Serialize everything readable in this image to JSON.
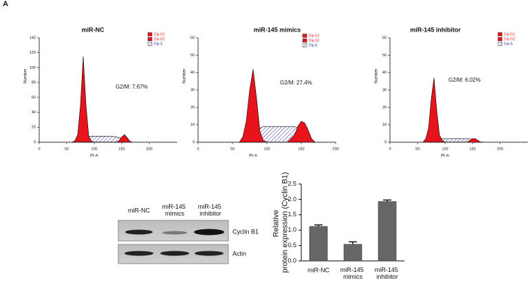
{
  "panel_label": "A",
  "chart_data": [
    {
      "type": "flow",
      "title": "miR-NC",
      "xlabel": "PI-A",
      "ylabel": "Number",
      "annotation": "G2/M: 7.67%",
      "x": [
        60,
        65,
        70,
        75,
        80,
        85,
        90,
        95,
        100,
        110,
        120,
        130,
        140,
        145,
        150,
        155,
        160,
        165,
        170
      ],
      "series": [
        {
          "name": "Dip G1",
          "color": "#e8141c",
          "fill": "solid",
          "values": [
            0,
            2,
            10,
            50,
            115,
            50,
            8,
            1,
            0,
            0,
            0,
            0,
            0,
            0,
            0,
            0,
            0,
            0,
            0
          ]
        },
        {
          "name": "Dip G2",
          "color": "#e8141c",
          "fill": "solid",
          "values": [
            0,
            0,
            0,
            0,
            0,
            0,
            0,
            0,
            0,
            0,
            0,
            0,
            0,
            2,
            7,
            10,
            6,
            1,
            0
          ]
        },
        {
          "name": "Dip S",
          "color": "#2a2a9a",
          "fill": "hatch",
          "values": [
            0,
            0,
            0,
            1,
            3,
            6,
            8,
            8,
            8,
            8,
            8,
            8,
            7,
            6,
            5,
            3,
            1,
            0,
            0
          ]
        }
      ],
      "xlim": [
        0,
        250
      ],
      "xticks": [
        0,
        50,
        100,
        150,
        200
      ],
      "ylim": [
        0,
        140
      ],
      "yticks": [
        0,
        20,
        40,
        60,
        80,
        100,
        120,
        140
      ]
    },
    {
      "type": "flow",
      "title": "miR-145 mimics",
      "xlabel": "PI-A",
      "ylabel": "Number",
      "annotation": "G2/M: 27.4%",
      "x": [
        60,
        65,
        70,
        75,
        80,
        85,
        90,
        95,
        100,
        110,
        120,
        130,
        140,
        145,
        150,
        155,
        160,
        165,
        170
      ],
      "series": [
        {
          "name": "Dip G1",
          "color": "#e8141c",
          "fill": "solid",
          "values": [
            0,
            3,
            12,
            30,
            42,
            25,
            6,
            1,
            0,
            0,
            0,
            0,
            0,
            0,
            0,
            0,
            0,
            0,
            0
          ]
        },
        {
          "name": "Dip G2",
          "color": "#e8141c",
          "fill": "solid",
          "values": [
            0,
            0,
            0,
            0,
            0,
            0,
            0,
            0,
            0,
            0,
            0,
            0,
            4,
            9,
            12,
            11,
            7,
            2,
            0
          ]
        },
        {
          "name": "Dip S",
          "color": "#2a2a9a",
          "fill": "hatch",
          "values": [
            0,
            0,
            0,
            1,
            3,
            6,
            8,
            9,
            9,
            9,
            9,
            9,
            9,
            8,
            6,
            4,
            2,
            0,
            0
          ]
        }
      ],
      "xlim": [
        0,
        200
      ],
      "xticks": [
        0,
        50,
        100,
        150,
        200
      ],
      "ylim": [
        0,
        60
      ],
      "yticks": [
        0,
        10,
        20,
        30,
        40,
        50,
        60
      ]
    },
    {
      "type": "flow",
      "title": "miR-145 inhibitor",
      "xlabel": "PI-A",
      "ylabel": "Number",
      "annotation": "G2/M: 6.02%",
      "x": [
        60,
        65,
        70,
        75,
        80,
        85,
        90,
        95,
        100,
        110,
        120,
        130,
        140,
        145,
        150,
        155,
        160,
        165,
        170
      ],
      "series": [
        {
          "name": "Dip G1",
          "color": "#e8141c",
          "fill": "solid",
          "values": [
            0,
            2,
            8,
            25,
            37,
            18,
            4,
            1,
            0,
            0,
            0,
            0,
            0,
            0,
            0,
            0,
            0,
            0,
            0
          ]
        },
        {
          "name": "Dip G2",
          "color": "#e8141c",
          "fill": "solid",
          "values": [
            0,
            0,
            0,
            0,
            0,
            0,
            0,
            0,
            0,
            0,
            0,
            0,
            0,
            1,
            2,
            2,
            1,
            0,
            0
          ]
        },
        {
          "name": "Dip S",
          "color": "#2a2a9a",
          "fill": "hatch",
          "values": [
            0,
            0,
            0,
            0,
            1,
            2,
            2,
            2,
            2,
            2,
            2,
            2,
            2,
            2,
            1,
            1,
            0,
            0,
            0
          ]
        }
      ],
      "xlim": [
        0,
        250
      ],
      "xticks": [
        0,
        50,
        100,
        150,
        200
      ],
      "ylim": [
        0,
        60
      ],
      "yticks": [
        0,
        10,
        20,
        30,
        40,
        50,
        60
      ]
    },
    {
      "type": "bar",
      "ylabel": "Relative protein expression (Cyclin B1)",
      "categories": [
        "miR-NC",
        "miR-145 mimics",
        "miR-145 inhibitor"
      ],
      "values": [
        1.12,
        0.54,
        1.93
      ],
      "errors": [
        0.05,
        0.08,
        0.05
      ],
      "color": "#666666",
      "ylim": [
        0,
        2.5
      ],
      "yticks": [
        {
          "value": 0,
          "label": "0.0"
        },
        {
          "value": 0.5,
          "label": "0.5"
        },
        {
          "value": 1,
          "label": "1.0"
        },
        {
          "value": 1.5,
          "label": "1.5"
        },
        {
          "value": 2,
          "label": "2.0"
        },
        {
          "value": 2.5,
          "label": "2.5"
        }
      ]
    }
  ],
  "blot": {
    "columns": [
      "miR-NC",
      "miR-145 mimics",
      "miR-145 inhibitor"
    ],
    "rows": [
      "Cyclin B1",
      "Actin"
    ]
  }
}
